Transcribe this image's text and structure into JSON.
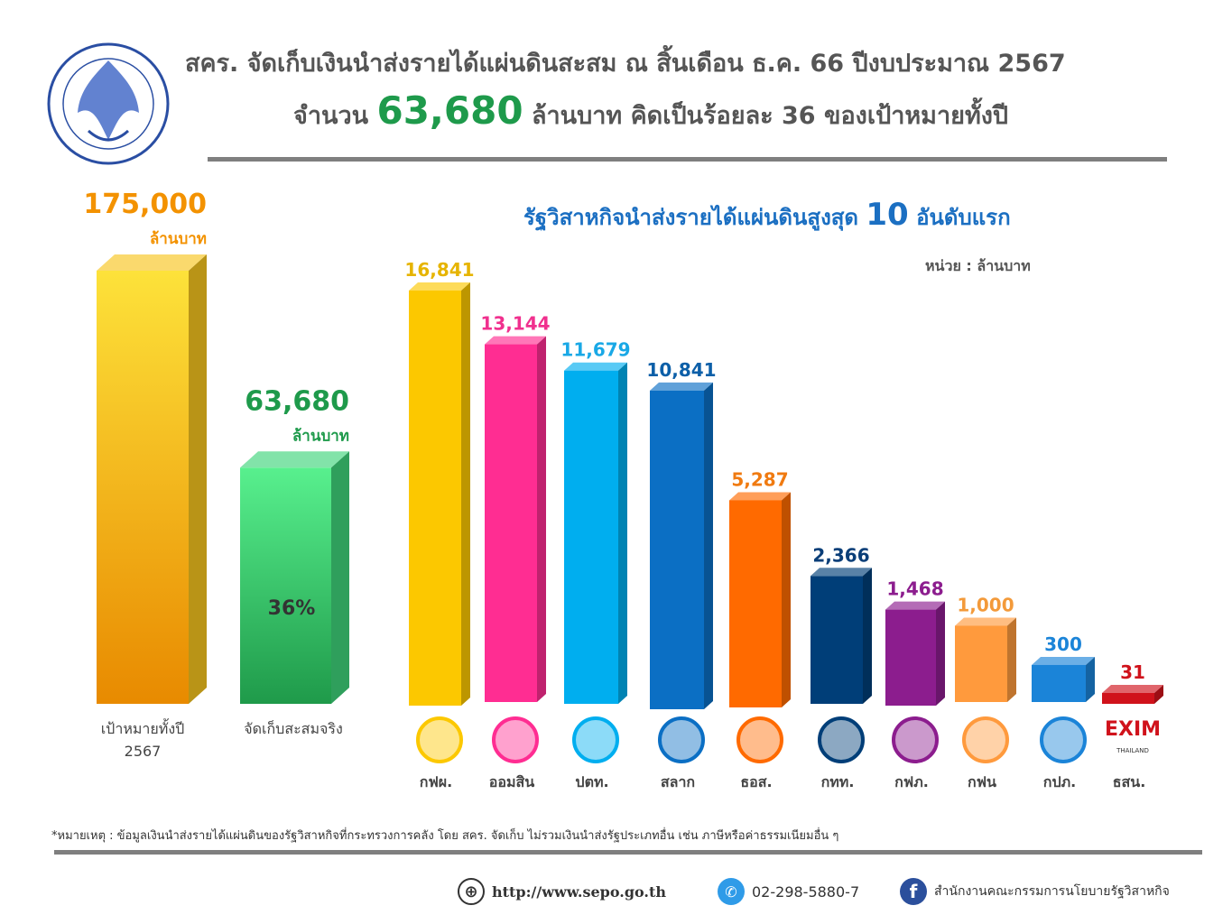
{
  "header": {
    "title_line1": "สคร. จัดเก็บเงินนำส่งรายได้แผ่นดินสะสม ณ สิ้นเดือน ธ.ค. 66 ปีงบประมาณ 2567",
    "title_line2_prefix": "จำนวน",
    "title_line2_amount": "63,680",
    "title_line2_suffix": "ล้านบาท คิดเป็นร้อยละ 36 ของเป้าหมายทั้งปี",
    "logo_text": "สำนักงานคณะกรรมการนโยบายรัฐวิสาหกิจ"
  },
  "chart_data": [
    {
      "type": "bar",
      "categories": [
        "เป้าหมายทั้งปี 2567",
        "จัดเก็บสะสมจริง"
      ],
      "values": [
        175000,
        63680
      ],
      "value_labels": [
        "175,000",
        "63,680"
      ],
      "value_unit": "ล้านบาท",
      "inner_label": "36%",
      "colors": [
        "#f7c51e",
        "#3ed47a"
      ],
      "label_colors": [
        "#f39200",
        "#1e9a4b"
      ]
    },
    {
      "type": "bar",
      "title_prefix": "รัฐวิสาหกิจนำส่งรายได้แผ่นดินสูงสุด",
      "title_number": "10",
      "title_suffix": "อันดับแรก",
      "unit": "หน่วย : ล้านบาท",
      "categories": [
        "กฟผ.",
        "ออมสิน",
        "ปตท.",
        "สลาก",
        "ธอส.",
        "กทท.",
        "กฟภ.",
        "กฟน",
        "กปภ.",
        "ธสน."
      ],
      "values": [
        16841,
        13144,
        11679,
        10841,
        5287,
        2366,
        1468,
        1000,
        300,
        31
      ],
      "value_labels": [
        "16,841",
        "13,144",
        "11,679",
        "10,841",
        "5,287",
        "2,366",
        "1,468",
        "1,000",
        "300",
        "31"
      ],
      "colors": [
        "#fcc800",
        "#ff2d92",
        "#00aeef",
        "#0b6fc4",
        "#ff6a00",
        "#003e78",
        "#8c1d8e",
        "#ff9a3d",
        "#1b84d8",
        "#d0121b"
      ],
      "label_colors": [
        "#e6b400",
        "#f0308e",
        "#19a8e6",
        "#0c5fa8",
        "#f07a10",
        "#0a3e78",
        "#8c1d8e",
        "#f39a3a",
        "#1b84d8",
        "#d0121b"
      ],
      "logo_text_exim": "EXIM",
      "logo_text_exim_sub": "THAILAND"
    }
  ],
  "footnote": "*หมายเหตุ : ข้อมูลเงินนำส่งรายได้แผ่นดินของรัฐวิสาหกิจที่กระทรวงการคลัง โดย สคร. จัดเก็บ ไม่รวมเงินนำส่งรัฐประเภทอื่น เช่น ภาษีหรือค่าธรรมเนียมอื่น ๆ",
  "footer": {
    "website": "http://www.sepo.go.th",
    "phone": "02-298-5880-7",
    "facebook": "สำนักงานคณะกรรมการนโยบายรัฐวิสาหกิจ"
  }
}
